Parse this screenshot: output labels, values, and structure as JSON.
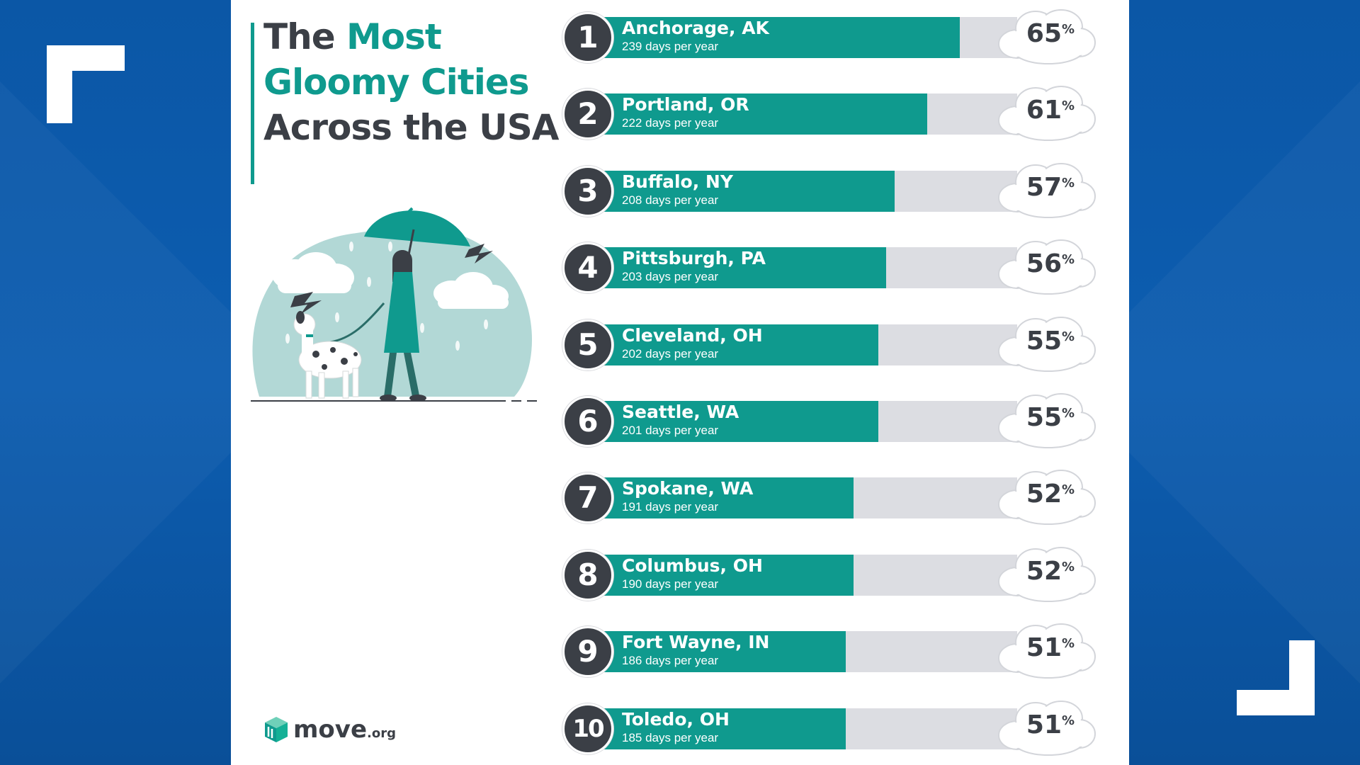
{
  "title": {
    "part1": "The ",
    "accent": "Most Gloomy Cities",
    "part2": " Across the USA"
  },
  "logo": {
    "name": "move",
    "suffix": ".org"
  },
  "colors": {
    "accent": "#0f9a8e",
    "dark": "#3b3f46",
    "track": "#dcdde2",
    "background": "#0b57a6"
  },
  "chart_data": {
    "type": "bar",
    "title": "The Most Gloomy Cities Across the USA",
    "unit": "%",
    "ylim": [
      0,
      100
    ],
    "categories": [
      "Anchorage, AK",
      "Portland, OR",
      "Buffalo, NY",
      "Pittsburgh, PA",
      "Cleveland, OH",
      "Seattle, WA",
      "Spokane, WA",
      "Columbus, OH",
      "Fort Wayne, IN",
      "Toledo, OH"
    ],
    "ranks": [
      "1",
      "2",
      "3",
      "4",
      "5",
      "6",
      "7",
      "8",
      "9",
      "10"
    ],
    "days": [
      "239 days per year",
      "222 days per year",
      "208 days per year",
      "203 days per year",
      "202 days per year",
      "201 days per year",
      "191 days per year",
      "190 days per year",
      "186 days per year",
      "185 days per year"
    ],
    "values": [
      65,
      61,
      57,
      56,
      55,
      55,
      52,
      52,
      51,
      51
    ]
  }
}
